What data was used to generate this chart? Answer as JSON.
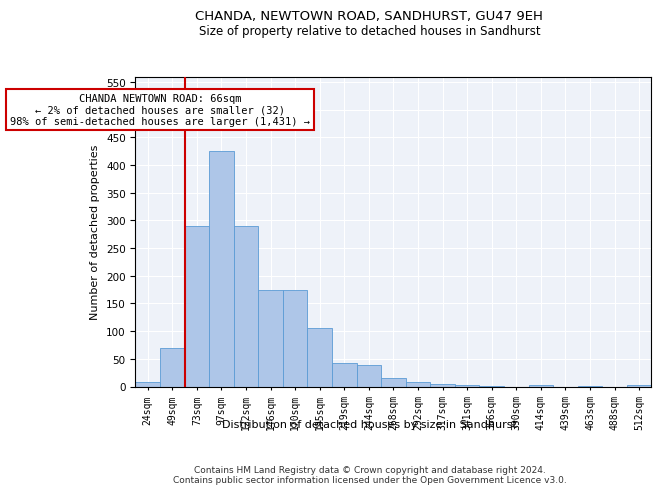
{
  "title": "CHANDA, NEWTOWN ROAD, SANDHURST, GU47 9EH",
  "subtitle": "Size of property relative to detached houses in Sandhurst",
  "xlabel": "Distribution of detached houses by size in Sandhurst",
  "ylabel": "Number of detached properties",
  "categories": [
    "24sqm",
    "49sqm",
    "73sqm",
    "97sqm",
    "122sqm",
    "146sqm",
    "170sqm",
    "195sqm",
    "219sqm",
    "244sqm",
    "268sqm",
    "292sqm",
    "317sqm",
    "341sqm",
    "366sqm",
    "390sqm",
    "414sqm",
    "439sqm",
    "463sqm",
    "488sqm",
    "512sqm"
  ],
  "values": [
    8,
    70,
    290,
    425,
    290,
    175,
    175,
    105,
    43,
    38,
    16,
    8,
    4,
    2,
    1,
    0,
    2,
    0,
    1,
    0,
    2
  ],
  "bar_color": "#aec6e8",
  "bar_edge_color": "#5b9bd5",
  "annotation_line1": "CHANDA NEWTOWN ROAD: 66sqm",
  "annotation_line2": "← 2% of detached houses are smaller (32)",
  "annotation_line3": "98% of semi-detached houses are larger (1,431) →",
  "annotation_box_color": "#ffffff",
  "annotation_box_edge_color": "#cc0000",
  "annotation_text_fontsize": 7.5,
  "vline_color": "#cc0000",
  "vline_x_index": 1.5,
  "ylim": [
    0,
    560
  ],
  "yticks": [
    0,
    50,
    100,
    150,
    200,
    250,
    300,
    350,
    400,
    450,
    500,
    550
  ],
  "bg_color": "#eef2f9",
  "footer": "Contains HM Land Registry data © Crown copyright and database right 2024.\nContains public sector information licensed under the Open Government Licence v3.0.",
  "title_fontsize": 9.5,
  "subtitle_fontsize": 8.5,
  "xlabel_fontsize": 8,
  "ylabel_fontsize": 8,
  "footer_fontsize": 6.5
}
